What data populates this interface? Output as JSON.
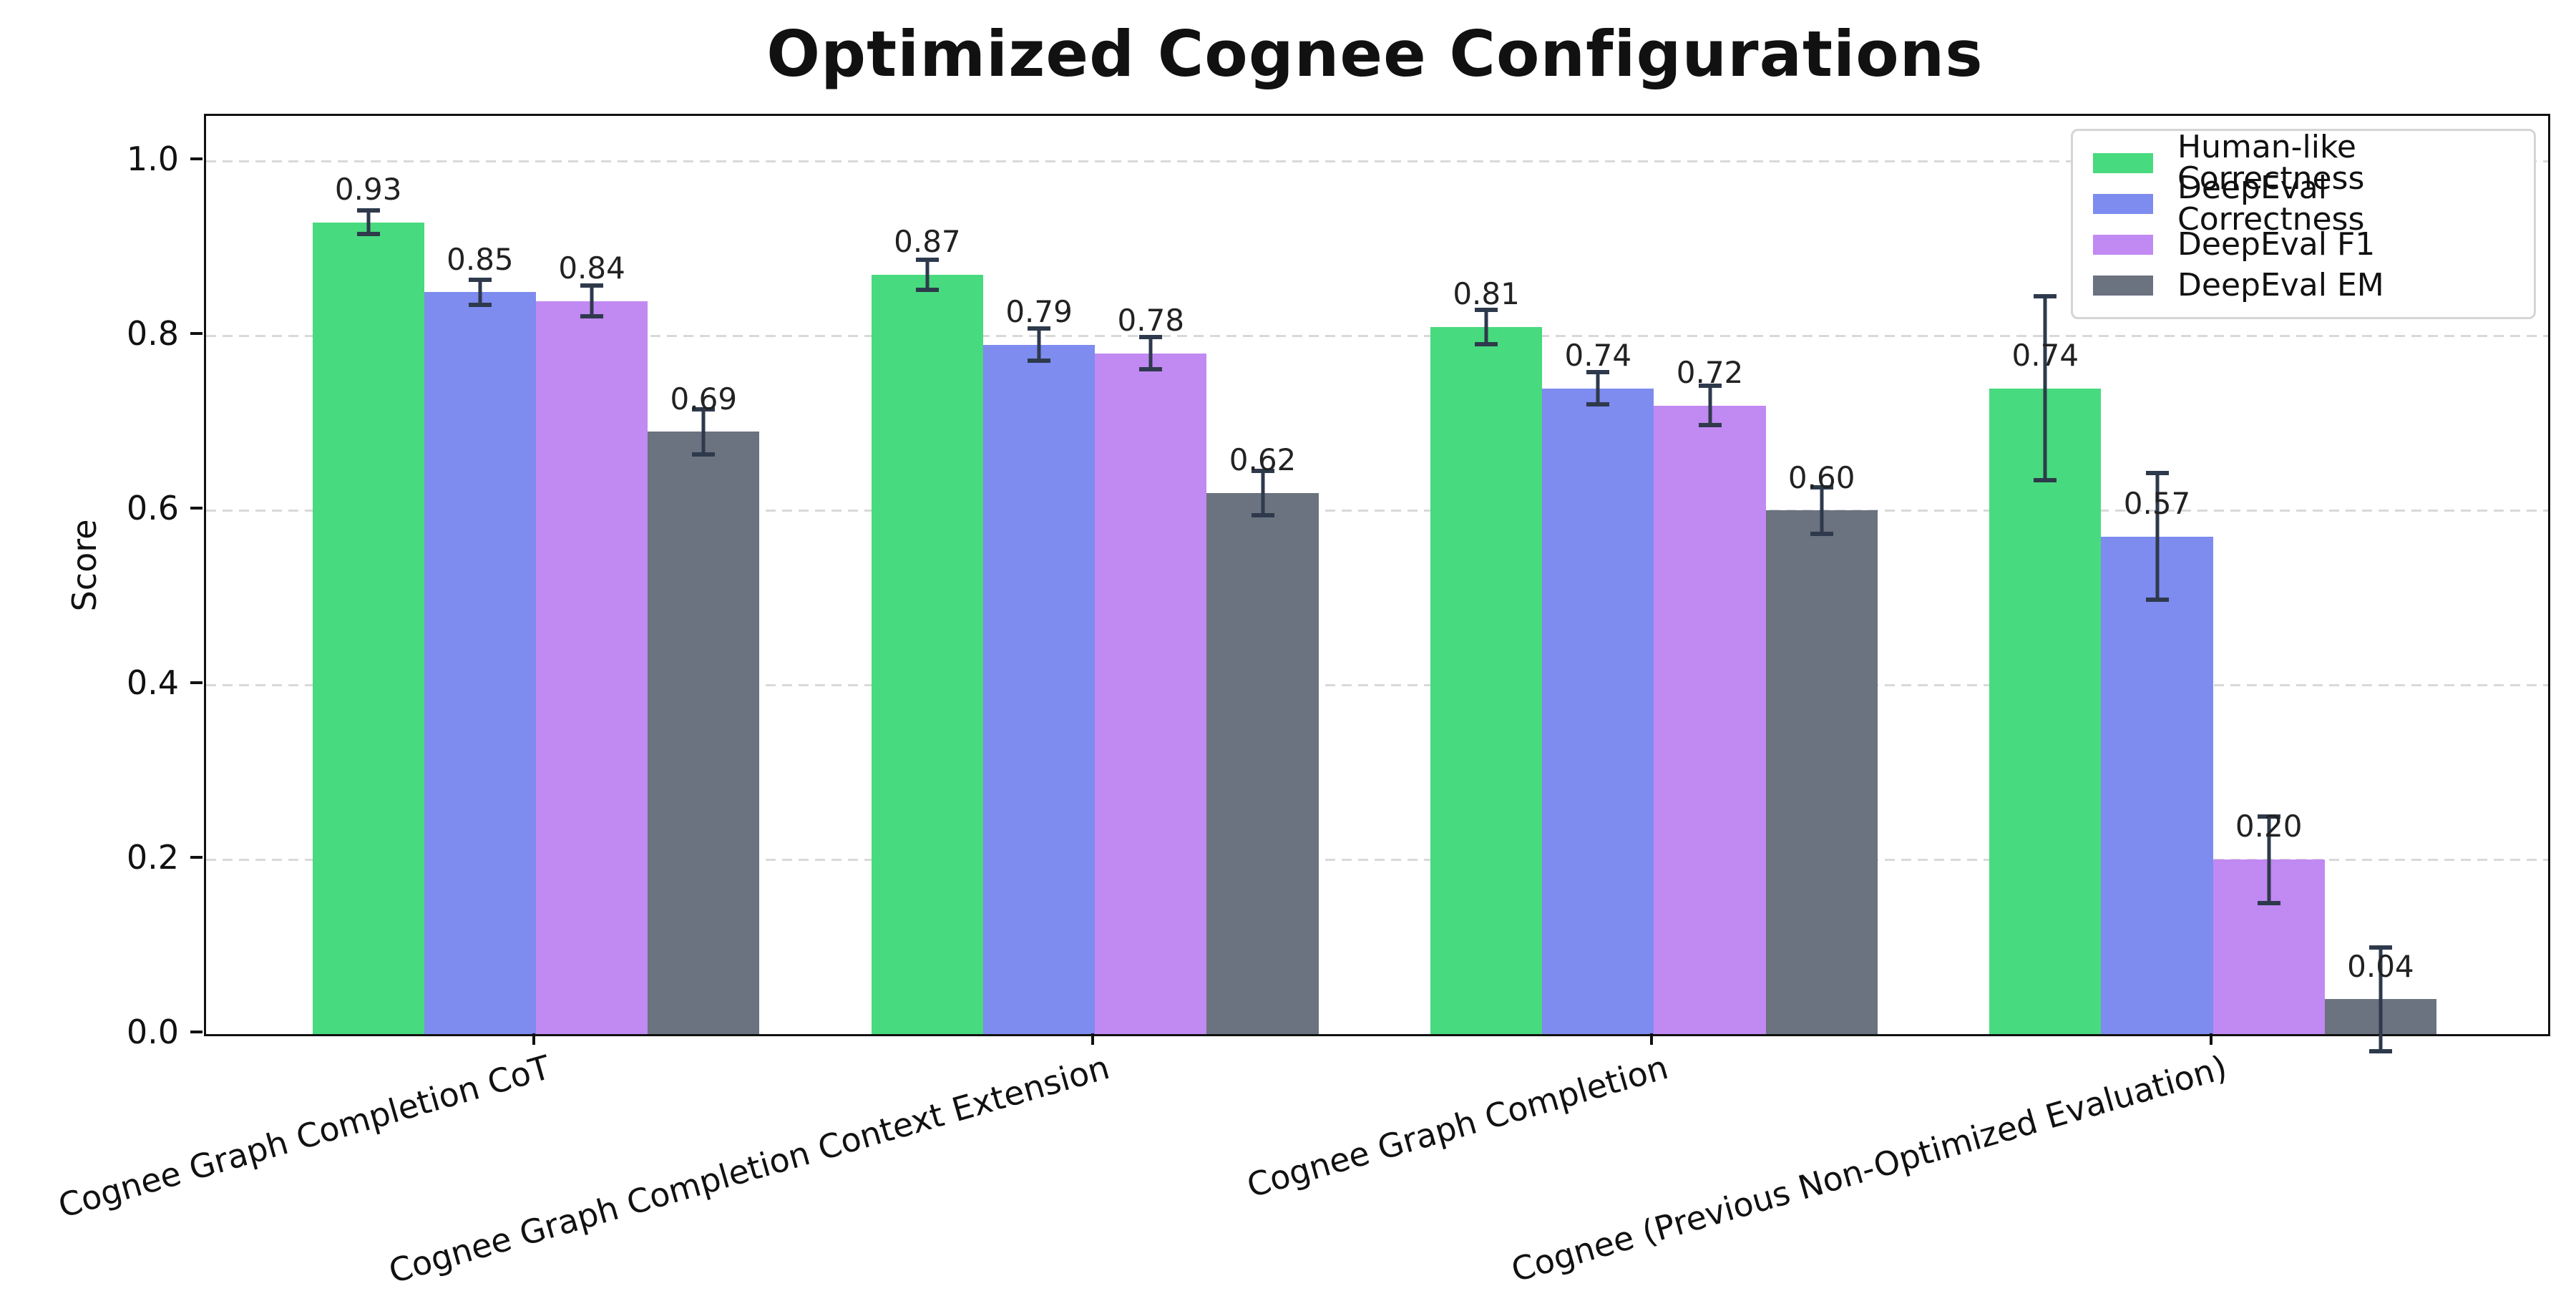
{
  "chart_data": {
    "type": "bar",
    "title": "Optimized Cognee Configurations",
    "ylabel": "Score",
    "xlabel": "",
    "ylim": [
      0,
      1.05
    ],
    "yticks": [
      0.0,
      0.2,
      0.4,
      0.6,
      0.8,
      1.0
    ],
    "grid": "horizontal-dashed",
    "grid_color": "#d9d9d9",
    "legend_position": "upper-right",
    "error_bar_color": "#2e3a4c",
    "spine_color": "#111111",
    "categories": [
      "Cognee Graph Completion CoT",
      "Cognee Graph Completion Context Extension",
      "Cognee Graph Completion",
      "Cognee (Previous Non-Optimized Evaluation)"
    ],
    "series": [
      {
        "name": "Human-like Correctness",
        "color": "#48da7e",
        "values": [
          0.93,
          0.87,
          0.81,
          0.74
        ],
        "errors": [
          0.016,
          0.02,
          0.022,
          0.108
        ]
      },
      {
        "name": "DeepEval Correctness",
        "color": "#7e8bef",
        "values": [
          0.85,
          0.79,
          0.74,
          0.57
        ],
        "errors": [
          0.017,
          0.021,
          0.021,
          0.075
        ]
      },
      {
        "name": "DeepEval F1",
        "color": "#c189f2",
        "values": [
          0.84,
          0.78,
          0.72,
          0.2
        ],
        "errors": [
          0.02,
          0.021,
          0.025,
          0.052
        ]
      },
      {
        "name": "DeepEval EM",
        "color": "#6b7280",
        "values": [
          0.69,
          0.62,
          0.6,
          0.04
        ],
        "errors": [
          0.028,
          0.028,
          0.029,
          0.062
        ]
      }
    ],
    "value_label_decimals": 2,
    "ytick_decimals": 1
  }
}
